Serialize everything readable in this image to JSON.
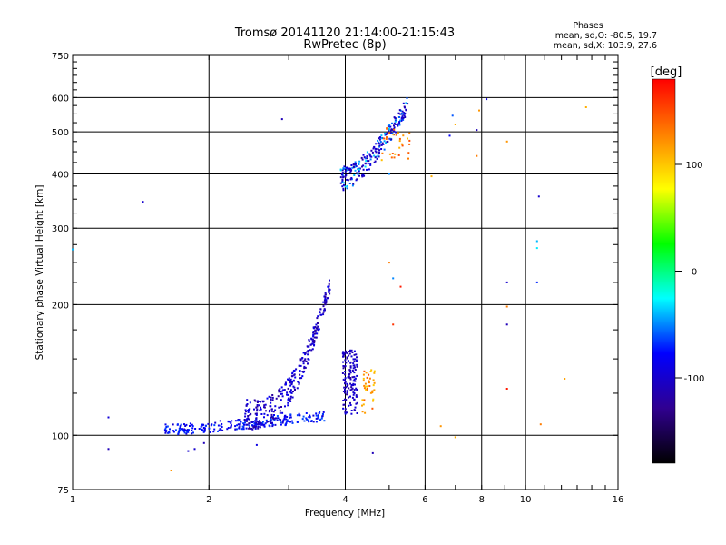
{
  "chart_data": {
    "type": "scatter",
    "title": "Tromsø 20141120 21:14:00-21:15:43",
    "subtitle": "RwPretec (8p)",
    "xlabel": "Frequency [MHz]",
    "ylabel": "Stationary phase Virtual Height [km]",
    "x_scale": "log",
    "y_scale": "log",
    "xlim": [
      1,
      16
    ],
    "ylim": [
      75,
      750
    ],
    "x_ticks": [
      1,
      2,
      4,
      6,
      8,
      10,
      16
    ],
    "x_tick_labels": [
      "1",
      "2",
      "4",
      "6",
      "8",
      "10",
      "16"
    ],
    "y_ticks": [
      75,
      100,
      200,
      300,
      400,
      500,
      600,
      750
    ],
    "y_tick_labels": [
      "75",
      "100",
      "200",
      "300",
      "400",
      "500",
      "600",
      "750"
    ],
    "grid": true,
    "stats": {
      "heading": "Phases",
      "line1": "mean, sd,O: -80.5, 19.7",
      "line2": "mean, sd,X: 103.9, 27.6"
    },
    "colorbar": {
      "label": "[deg]",
      "ticks": [
        100,
        0,
        -100
      ],
      "tick_labels": [
        "100",
        "0",
        "-100"
      ],
      "range": [
        -180,
        180
      ],
      "colors": [
        "#ff0000",
        "#ff8000",
        "#ffff00",
        "#00ff00",
        "#00ffff",
        "#0000ff",
        "#300090",
        "#000000"
      ]
    },
    "points": [
      {
        "x": 1.0,
        "y": 268,
        "phase": -40
      },
      {
        "x": 1.2,
        "y": 110,
        "phase": -95
      },
      {
        "x": 1.2,
        "y": 93,
        "phase": -110
      },
      {
        "x": 1.43,
        "y": 345,
        "phase": -100
      },
      {
        "x": 1.65,
        "y": 83,
        "phase": 120
      },
      {
        "x": 1.8,
        "y": 92,
        "phase": -100
      },
      {
        "x": 1.86,
        "y": 93,
        "phase": -100
      },
      {
        "x": 1.95,
        "y": 96,
        "phase": -110
      },
      {
        "x": 2.55,
        "y": 95,
        "phase": -90
      },
      {
        "x": 2.9,
        "y": 535,
        "phase": -110
      },
      {
        "x": 4.6,
        "y": 91,
        "phase": -110
      },
      {
        "x": 7.0,
        "y": 99,
        "phase": 110
      },
      {
        "x": 9.1,
        "y": 225,
        "phase": -100
      },
      {
        "x": 9.1,
        "y": 180,
        "phase": -110
      },
      {
        "x": 9.1,
        "y": 198,
        "phase": 130
      },
      {
        "x": 9.1,
        "y": 475,
        "phase": 120
      },
      {
        "x": 9.1,
        "y": 128,
        "phase": 170
      },
      {
        "x": 10.7,
        "y": 355,
        "phase": -100
      },
      {
        "x": 10.6,
        "y": 280,
        "phase": -40
      },
      {
        "x": 10.6,
        "y": 270,
        "phase": -30
      },
      {
        "x": 10.6,
        "y": 225,
        "phase": -70
      },
      {
        "x": 10.8,
        "y": 106,
        "phase": 130
      },
      {
        "x": 12.2,
        "y": 135,
        "phase": 115
      },
      {
        "x": 13.6,
        "y": 570,
        "phase": 110
      },
      {
        "x": 8.2,
        "y": 595,
        "phase": -90
      },
      {
        "x": 7.8,
        "y": 505,
        "phase": -110
      },
      {
        "x": 7.8,
        "y": 440,
        "phase": 130
      },
      {
        "x": 7.9,
        "y": 560,
        "phase": 120
      },
      {
        "x": 6.8,
        "y": 490,
        "phase": -80
      },
      {
        "x": 6.9,
        "y": 545,
        "phase": -60
      },
      {
        "x": 7.0,
        "y": 520,
        "phase": 110
      },
      {
        "x": 6.2,
        "y": 395,
        "phase": 110
      },
      {
        "x": 6.5,
        "y": 105,
        "phase": 120
      },
      {
        "x": 5.0,
        "y": 250,
        "phase": 130
      },
      {
        "x": 5.1,
        "y": 230,
        "phase": -50
      },
      {
        "x": 5.1,
        "y": 180,
        "phase": 160
      },
      {
        "x": 5.3,
        "y": 220,
        "phase": 170
      },
      {
        "x": 5.0,
        "y": 400,
        "phase": -50
      }
    ]
  }
}
